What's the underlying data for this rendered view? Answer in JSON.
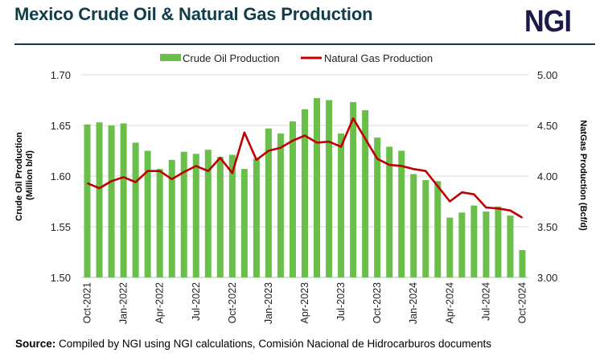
{
  "header": {
    "title": "Mexico Crude Oil & Natural Gas Production",
    "logo_text": "NGI"
  },
  "footer": {
    "source_label": "Source:",
    "source_text": "Compiled by NGI using NGI calculations, Comisión Nacional de Hidrocarburos documents"
  },
  "colors": {
    "crude": "#6abf4b",
    "gas": "#c00000",
    "title": "#0f3d4a",
    "logo": "#1b1a4a"
  },
  "chart_data": {
    "type": "bar+line",
    "title": "Mexico Crude Oil & Natural Gas Production",
    "legend_position": "top",
    "grid": true,
    "x_tick_labels": [
      "Oct-2021",
      "Jan-2022",
      "Apr-2022",
      "Jul-2022",
      "Oct-2022",
      "Jan-2023",
      "Apr-2023",
      "Jul-2023",
      "Oct-2023",
      "Jan-2024",
      "Apr-2024",
      "Jul-2024",
      "Oct-2024"
    ],
    "categories": [
      "Oct-2021",
      "Nov-2021",
      "Dec-2021",
      "Jan-2022",
      "Feb-2022",
      "Mar-2022",
      "Apr-2022",
      "May-2022",
      "Jun-2022",
      "Jul-2022",
      "Aug-2022",
      "Sep-2022",
      "Oct-2022",
      "Nov-2022",
      "Dec-2022",
      "Jan-2023",
      "Feb-2023",
      "Mar-2023",
      "Apr-2023",
      "May-2023",
      "Jun-2023",
      "Jul-2023",
      "Aug-2023",
      "Sep-2023",
      "Oct-2023",
      "Nov-2023",
      "Dec-2023",
      "Jan-2024",
      "Feb-2024",
      "Mar-2024",
      "Apr-2024",
      "May-2024",
      "Jun-2024",
      "Jul-2024",
      "Aug-2024",
      "Sep-2024",
      "Oct-2024"
    ],
    "y_left": {
      "label": "Crude Oil Production (Million b/d)",
      "lim": [
        1.5,
        1.7
      ],
      "ticks": [
        "1.50",
        "1.55",
        "1.60",
        "1.65",
        "1.70"
      ]
    },
    "y_right": {
      "label": "NatGas Production (Bcf/d)",
      "lim": [
        3.0,
        5.0
      ],
      "ticks": [
        "3.00",
        "3.50",
        "4.00",
        "4.50",
        "5.00"
      ]
    },
    "series": [
      {
        "name": "Crude Oil Production",
        "type": "bar",
        "axis": "left",
        "values": [
          1.651,
          1.653,
          1.65,
          1.652,
          1.633,
          1.625,
          1.607,
          1.616,
          1.624,
          1.622,
          1.626,
          1.619,
          1.621,
          1.607,
          1.617,
          1.647,
          1.642,
          1.654,
          1.666,
          1.677,
          1.675,
          1.642,
          1.673,
          1.665,
          1.638,
          1.629,
          1.625,
          1.602,
          1.596,
          1.595,
          1.559,
          1.564,
          1.571,
          1.565,
          1.57,
          1.561,
          1.527
        ]
      },
      {
        "name": "Natural Gas Production",
        "type": "line",
        "axis": "right",
        "values": [
          3.93,
          3.88,
          3.95,
          3.99,
          3.94,
          4.05,
          4.05,
          3.97,
          4.04,
          4.1,
          4.05,
          4.18,
          4.03,
          4.43,
          4.16,
          4.25,
          4.28,
          4.35,
          4.4,
          4.33,
          4.34,
          4.29,
          4.57,
          4.37,
          4.17,
          4.11,
          4.1,
          4.07,
          4.05,
          3.9,
          3.75,
          3.84,
          3.82,
          3.69,
          3.68,
          3.66,
          3.59
        ]
      }
    ]
  }
}
